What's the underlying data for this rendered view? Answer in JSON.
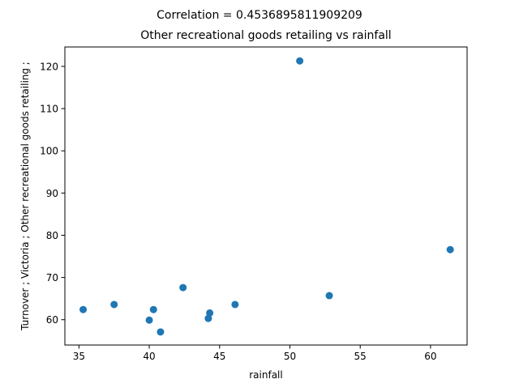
{
  "chart_data": {
    "type": "scatter",
    "suptitle": "Correlation = 0.4536895811909209",
    "title": "Other recreational goods retailing vs rainfall",
    "xlabel": "rainfall",
    "ylabel": "Turnover ;  Victoria ;  Other recreational goods retailing ;",
    "xlim": [
      34.0,
      62.6
    ],
    "ylim": [
      54.0,
      124.6
    ],
    "xticks": [
      35,
      40,
      45,
      50,
      55,
      60
    ],
    "yticks": [
      60,
      70,
      80,
      90,
      100,
      110,
      120
    ],
    "grid": false,
    "marker_color": "#1f77b4",
    "points": [
      {
        "x": 35.3,
        "y": 62.4
      },
      {
        "x": 37.5,
        "y": 63.6
      },
      {
        "x": 40.0,
        "y": 59.9
      },
      {
        "x": 40.3,
        "y": 62.4
      },
      {
        "x": 40.8,
        "y": 57.1
      },
      {
        "x": 42.4,
        "y": 67.6
      },
      {
        "x": 44.2,
        "y": 60.3
      },
      {
        "x": 44.3,
        "y": 61.6
      },
      {
        "x": 46.1,
        "y": 63.6
      },
      {
        "x": 50.7,
        "y": 121.3
      },
      {
        "x": 52.8,
        "y": 65.7
      },
      {
        "x": 61.4,
        "y": 76.6
      }
    ]
  }
}
